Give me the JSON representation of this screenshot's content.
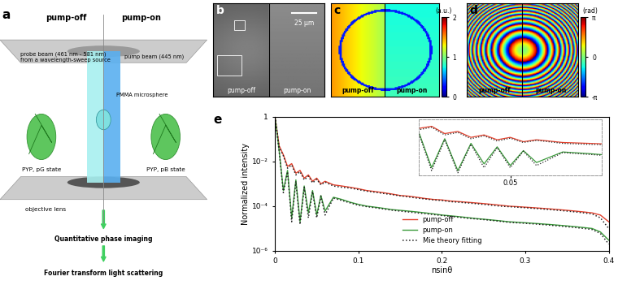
{
  "panels": {
    "a": {
      "letter": "a",
      "left_title": "pump-off",
      "right_title": "pump-on",
      "probe": "probe beam (461 nm - 581 nm)\nfrom a wavelength-sweep source",
      "pump": "pump beam (445 nm)",
      "sphere": "PMMA microsphere",
      "protein_left": "PYP, pG state",
      "protein_right": "PYP, pB state",
      "lens": "objective lens",
      "steps": [
        "Quantitative phase imaging",
        "Fourier transform light scattering"
      ]
    },
    "b": {
      "letter": "b",
      "labels": [
        "pump-off",
        "pump-on"
      ],
      "scale_bar": "25 µm"
    },
    "c": {
      "letter": "c",
      "labels": [
        "pump-off",
        "pump-on"
      ],
      "colorbar": {
        "label": "(a.u.)",
        "lim": [
          0,
          2
        ],
        "ticks": [
          0,
          1,
          2
        ]
      }
    },
    "d": {
      "letter": "d",
      "labels": [
        "pump-off",
        "pump-on"
      ],
      "colorbar": {
        "label": "(rad)",
        "lim": [
          -3.14159,
          3.14159
        ],
        "ticks": [
          {
            "value": 3.14159,
            "label": "π"
          },
          0,
          {
            "value": -3.14159,
            "label": "-π"
          }
        ]
      }
    }
  },
  "chart_data": {
    "type": "line",
    "letter": "e",
    "x_label": "nsinθ",
    "y_label": "Normalized intensity",
    "log": "y",
    "legend": "lower center",
    "xlim": [
      0,
      0.4
    ],
    "xticks": [
      0,
      0.1,
      0.2,
      0.3,
      0.4
    ],
    "ylim": [
      1e-06,
      1
    ],
    "yticks": [
      1,
      {
        "value": 0.01,
        "label": "10⁻²"
      },
      {
        "value": 0.0001,
        "label": "10⁻⁴"
      },
      {
        "value": 1e-06,
        "label": "10⁻⁶"
      }
    ],
    "x": [
      0,
      0.005,
      0.01,
      0.015,
      0.02,
      0.025,
      0.03,
      0.035,
      0.04,
      0.045,
      0.05,
      0.055,
      0.06,
      0.07,
      0.08,
      0.09,
      0.1,
      0.11,
      0.12,
      0.13,
      0.14,
      0.15,
      0.16,
      0.17,
      0.18,
      0.19,
      0.2,
      0.21,
      0.22,
      0.23,
      0.24,
      0.25,
      0.26,
      0.27,
      0.28,
      0.29,
      0.3,
      0.31,
      0.32,
      0.33,
      0.34,
      0.35,
      0.36,
      0.37,
      0.38,
      0.39,
      0.4
    ],
    "series": [
      {
        "name": "pump-off",
        "color": "#e3402c",
        "line_style": "solid",
        "values": [
          [
            1,
            0.05,
            0.02,
            0.006,
            0.008,
            0.003,
            0.004,
            0.0018,
            0.0025,
            0.0013,
            0.0018,
            0.001,
            0.0013,
            0.0009,
            0.0008,
            0.0007,
            0.0006,
            0.0005,
            0.00045,
            0.0004,
            0.00035,
            0.0003,
            0.00028,
            0.00025,
            0.00022,
            0.0002,
            0.00019,
            0.00017,
            0.00016,
            0.00015,
            0.00014,
            0.00013,
            0.00012,
            0.00011,
            0.0001,
            9.5e-05,
            9e-05,
            8.5e-05,
            8e-05,
            7.5e-05,
            7e-05,
            6.5e-05,
            6e-05,
            5.5e-05,
            5e-05,
            4e-05,
            2e-05
          ]
        ]
      },
      {
        "name": "pump-on",
        "color": "#3a9a3a",
        "line_style": "solid",
        "values": [
          [
            1,
            0.03,
            0.0005,
            0.004,
            3e-05,
            0.0015,
            2e-05,
            0.0008,
            5e-05,
            0.0005,
            4e-05,
            0.0003,
            6e-05,
            0.00025,
            0.0002,
            0.00015,
            0.00012,
            0.0001,
            9e-05,
            8e-05,
            7e-05,
            6.5e-05,
            6e-05,
            5.5e-05,
            5e-05,
            4.5e-05,
            4e-05,
            3.7e-05,
            3.4e-05,
            3.1e-05,
            2.8e-05,
            2.6e-05,
            2.4e-05,
            2.2e-05,
            2e-05,
            1.9e-05,
            1.8e-05,
            1.7e-05,
            1.6e-05,
            1.5e-05,
            1.4e-05,
            1.3e-05,
            1.2e-05,
            1.1e-05,
            1e-05,
            7e-06,
            3e-06
          ]
        ]
      },
      {
        "name": "Mie theory fitting",
        "color": "#222222",
        "line_style": "dotted",
        "values": [
          [
            1,
            0.045,
            0.018,
            0.005,
            0.007,
            0.0025,
            0.0035,
            0.0015,
            0.0022,
            0.0011,
            0.0016,
            0.0009,
            0.0012,
            0.0008,
            0.0007,
            0.00065,
            0.00055,
            0.00047,
            0.00042,
            0.00037,
            0.00033,
            0.00029,
            0.00026,
            0.00023,
            0.00021,
            0.00019,
            0.00018,
            0.00016,
            0.00015,
            0.00014,
            0.00013,
            0.00012,
            0.00011,
            0.0001,
            9.5e-05,
            9e-05,
            8.5e-05,
            8e-05,
            7.5e-05,
            7e-05,
            6.5e-05,
            6e-05,
            5.5e-05,
            5e-05,
            4.5e-05,
            3e-05,
            1e-05
          ],
          [
            1,
            0.028,
            0.0004,
            0.0035,
            2e-05,
            0.0013,
            1.5e-05,
            0.0007,
            3e-05,
            0.00045,
            3e-05,
            0.00028,
            4e-05,
            0.00023,
            0.00018,
            0.00014,
            0.00011,
            9.5e-05,
            8.5e-05,
            7.5e-05,
            6.6e-05,
            6e-05,
            5.5e-05,
            5e-05,
            4.6e-05,
            4.2e-05,
            3.8e-05,
            3.5e-05,
            3.2e-05,
            2.9e-05,
            2.7e-05,
            2.5e-05,
            2.3e-05,
            2.1e-05,
            1.9e-05,
            1.8e-05,
            1.7e-05,
            1.6e-05,
            1.5e-05,
            1.4e-05,
            1.3e-05,
            1.2e-05,
            1.1e-05,
            1e-05,
            9e-06,
            6e-06,
            2e-06
          ]
        ]
      }
    ],
    "inset": {
      "xlim": [
        0.015,
        0.085
      ],
      "xticks": [
        0.05
      ],
      "ylim": [
        1e-05,
        0.02
      ],
      "tick_labels": "x"
    }
  }
}
